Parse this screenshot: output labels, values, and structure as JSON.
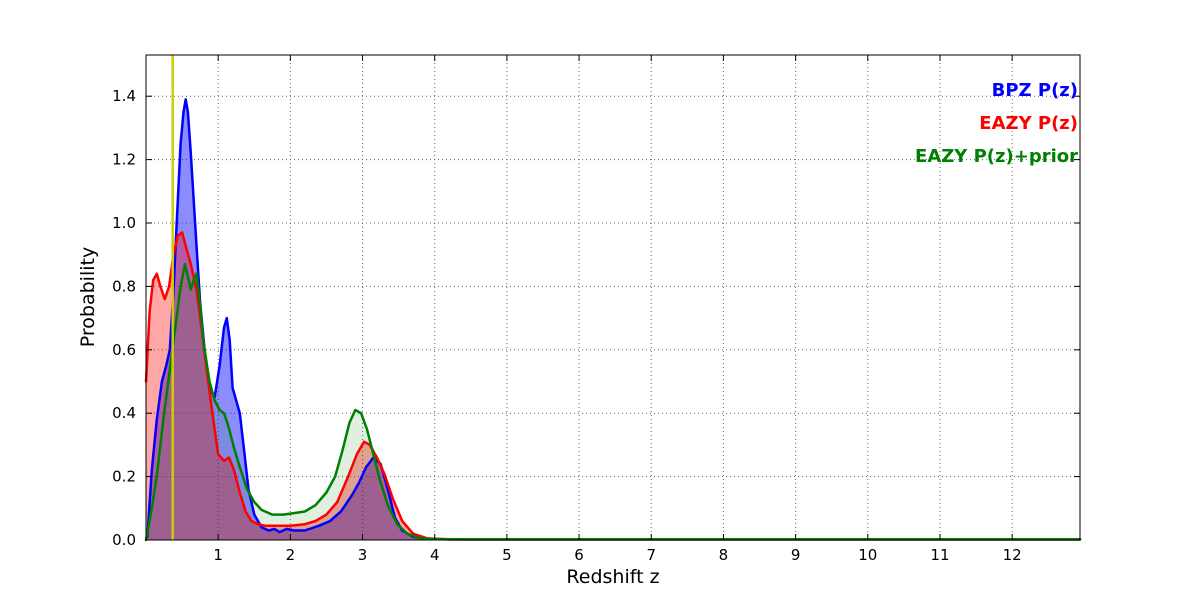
{
  "chart_data": {
    "type": "line",
    "title": "",
    "xlabel": "Redshift z",
    "ylabel": "Probability",
    "xlim": [
      0,
      12.94
    ],
    "ylim": [
      0,
      1.53
    ],
    "xticks": [
      1,
      2,
      3,
      4,
      5,
      6,
      7,
      8,
      9,
      10,
      11,
      12
    ],
    "yticks": [
      0.0,
      0.2,
      0.4,
      0.6,
      0.8,
      1.0,
      1.2,
      1.4
    ],
    "grid": "dotted",
    "grid_color": "#666666",
    "legend_position": "upper right",
    "vline": {
      "x": 0.37,
      "color": "#cfcf00",
      "width": 2.5
    },
    "series": [
      {
        "name": "BPZ P(z)",
        "color": "#0000ff",
        "fill_opacity": 0.45,
        "x": [
          0.02,
          0.08,
          0.15,
          0.22,
          0.28,
          0.33,
          0.38,
          0.43,
          0.48,
          0.52,
          0.55,
          0.58,
          0.62,
          0.68,
          0.75,
          0.82,
          0.88,
          0.95,
          1.02,
          1.08,
          1.12,
          1.16,
          1.2,
          1.25,
          1.3,
          1.36,
          1.42,
          1.5,
          1.6,
          1.7,
          1.78,
          1.85,
          1.95,
          2.05,
          2.2,
          2.4,
          2.55,
          2.7,
          2.85,
          2.95,
          3.05,
          3.15,
          3.25,
          3.35,
          3.45,
          3.55,
          3.7,
          3.9,
          4.2,
          5.0,
          6.0,
          8.0,
          10.0,
          12.0,
          12.94
        ],
        "y": [
          0.01,
          0.22,
          0.38,
          0.5,
          0.55,
          0.6,
          0.78,
          1.02,
          1.25,
          1.35,
          1.39,
          1.35,
          1.22,
          1.0,
          0.75,
          0.58,
          0.48,
          0.45,
          0.55,
          0.67,
          0.7,
          0.63,
          0.48,
          0.44,
          0.4,
          0.28,
          0.16,
          0.08,
          0.04,
          0.03,
          0.035,
          0.025,
          0.035,
          0.03,
          0.03,
          0.045,
          0.06,
          0.09,
          0.14,
          0.18,
          0.23,
          0.26,
          0.24,
          0.16,
          0.07,
          0.03,
          0.01,
          0.003,
          0.002,
          0.002,
          0.002,
          0.002,
          0.002,
          0.002,
          0.002
        ]
      },
      {
        "name": "EAZY P(z)",
        "color": "#ff0000",
        "fill_opacity": 0.35,
        "x": [
          0.0,
          0.05,
          0.1,
          0.15,
          0.2,
          0.26,
          0.32,
          0.38,
          0.44,
          0.5,
          0.56,
          0.62,
          0.7,
          0.78,
          0.85,
          0.92,
          1.0,
          1.08,
          1.15,
          1.22,
          1.3,
          1.38,
          1.46,
          1.55,
          1.65,
          1.8,
          2.0,
          2.2,
          2.35,
          2.5,
          2.65,
          2.8,
          2.92,
          3.02,
          3.1,
          3.2,
          3.3,
          3.42,
          3.55,
          3.7,
          3.9,
          4.2,
          5.0,
          6.0,
          8.0,
          10.0,
          12.0,
          12.94
        ],
        "y": [
          0.5,
          0.72,
          0.82,
          0.84,
          0.8,
          0.76,
          0.8,
          0.9,
          0.96,
          0.97,
          0.92,
          0.87,
          0.79,
          0.65,
          0.52,
          0.4,
          0.27,
          0.25,
          0.26,
          0.22,
          0.15,
          0.09,
          0.06,
          0.05,
          0.045,
          0.045,
          0.045,
          0.05,
          0.06,
          0.08,
          0.12,
          0.2,
          0.27,
          0.31,
          0.3,
          0.26,
          0.21,
          0.13,
          0.06,
          0.02,
          0.005,
          0.002,
          0.002,
          0.002,
          0.002,
          0.002,
          0.002,
          0.002
        ]
      },
      {
        "name": "EAZY P(z)+prior",
        "color": "#008000",
        "fill_opacity": 0.12,
        "x": [
          0.0,
          0.08,
          0.16,
          0.24,
          0.32,
          0.4,
          0.48,
          0.54,
          0.58,
          0.62,
          0.66,
          0.7,
          0.74,
          0.8,
          0.88,
          0.95,
          1.02,
          1.08,
          1.14,
          1.22,
          1.3,
          1.4,
          1.5,
          1.6,
          1.75,
          1.9,
          2.05,
          2.2,
          2.35,
          2.5,
          2.62,
          2.72,
          2.82,
          2.9,
          2.98,
          3.06,
          3.14,
          3.24,
          3.35,
          3.48,
          3.62,
          3.8,
          4.0,
          4.4,
          5.0,
          6.0,
          8.0,
          10.0,
          12.0,
          12.94
        ],
        "y": [
          0.0,
          0.1,
          0.22,
          0.38,
          0.52,
          0.66,
          0.8,
          0.87,
          0.83,
          0.79,
          0.82,
          0.84,
          0.76,
          0.62,
          0.5,
          0.44,
          0.41,
          0.4,
          0.36,
          0.29,
          0.23,
          0.16,
          0.12,
          0.095,
          0.08,
          0.08,
          0.085,
          0.09,
          0.11,
          0.15,
          0.2,
          0.28,
          0.37,
          0.41,
          0.4,
          0.35,
          0.28,
          0.19,
          0.11,
          0.05,
          0.02,
          0.005,
          0.003,
          0.002,
          0.002,
          0.002,
          0.002,
          0.002,
          0.002,
          0.002
        ]
      }
    ]
  },
  "legend": {
    "items": [
      {
        "label": "BPZ P(z)"
      },
      {
        "label": "EAZY P(z)"
      },
      {
        "label": "EAZY P(z)+prior"
      }
    ]
  }
}
